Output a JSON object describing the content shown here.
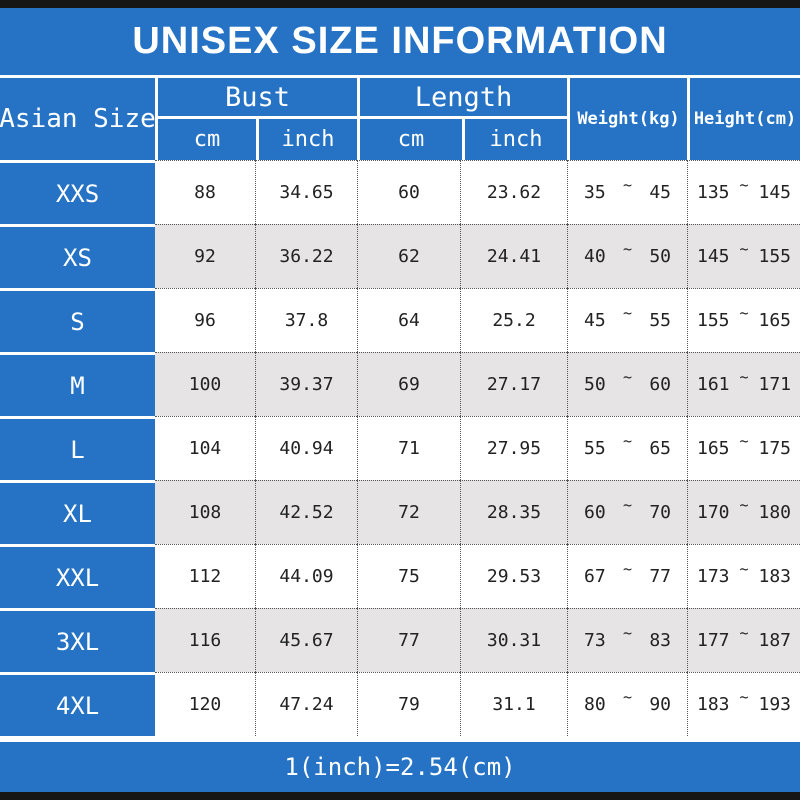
{
  "title": "UNISEX SIZE INFORMATION",
  "footer_note": "1(inch)=2.54(cm)",
  "tilde": "~",
  "colors": {
    "accent_blue": "#2673c5",
    "row_alt_gray": "#e6e4e5",
    "bar_black": "#161616",
    "text_dark": "#222222",
    "text_white": "#ffffff"
  },
  "chart_data": {
    "type": "table",
    "title": "UNISEX SIZE INFORMATION",
    "corner_header": "Asian Size",
    "column_groups": [
      {
        "label": "Bust",
        "subcolumns": [
          "cm",
          "inch"
        ]
      },
      {
        "label": "Length",
        "subcolumns": [
          "cm",
          "inch"
        ]
      }
    ],
    "single_columns": [
      "Weight(kg)",
      "Height(cm)"
    ],
    "rows": [
      {
        "size": "XXS",
        "bust_cm": "88",
        "bust_inch": "34.65",
        "length_cm": "60",
        "length_inch": "23.62",
        "weight_min": "35",
        "weight_max": "45",
        "height_min": "135",
        "height_max": "145"
      },
      {
        "size": "XS",
        "bust_cm": "92",
        "bust_inch": "36.22",
        "length_cm": "62",
        "length_inch": "24.41",
        "weight_min": "40",
        "weight_max": "50",
        "height_min": "145",
        "height_max": "155"
      },
      {
        "size": "S",
        "bust_cm": "96",
        "bust_inch": "37.8",
        "length_cm": "64",
        "length_inch": "25.2",
        "weight_min": "45",
        "weight_max": "55",
        "height_min": "155",
        "height_max": "165"
      },
      {
        "size": "M",
        "bust_cm": "100",
        "bust_inch": "39.37",
        "length_cm": "69",
        "length_inch": "27.17",
        "weight_min": "50",
        "weight_max": "60",
        "height_min": "161",
        "height_max": "171"
      },
      {
        "size": "L",
        "bust_cm": "104",
        "bust_inch": "40.94",
        "length_cm": "71",
        "length_inch": "27.95",
        "weight_min": "55",
        "weight_max": "65",
        "height_min": "165",
        "height_max": "175"
      },
      {
        "size": "XL",
        "bust_cm": "108",
        "bust_inch": "42.52",
        "length_cm": "72",
        "length_inch": "28.35",
        "weight_min": "60",
        "weight_max": "70",
        "height_min": "170",
        "height_max": "180"
      },
      {
        "size": "XXL",
        "bust_cm": "112",
        "bust_inch": "44.09",
        "length_cm": "75",
        "length_inch": "29.53",
        "weight_min": "67",
        "weight_max": "77",
        "height_min": "173",
        "height_max": "183"
      },
      {
        "size": "3XL",
        "bust_cm": "116",
        "bust_inch": "45.67",
        "length_cm": "77",
        "length_inch": "30.31",
        "weight_min": "73",
        "weight_max": "83",
        "height_min": "177",
        "height_max": "187"
      },
      {
        "size": "4XL",
        "bust_cm": "120",
        "bust_inch": "47.24",
        "length_cm": "79",
        "length_inch": "31.1",
        "weight_min": "80",
        "weight_max": "90",
        "height_min": "183",
        "height_max": "193"
      }
    ]
  }
}
